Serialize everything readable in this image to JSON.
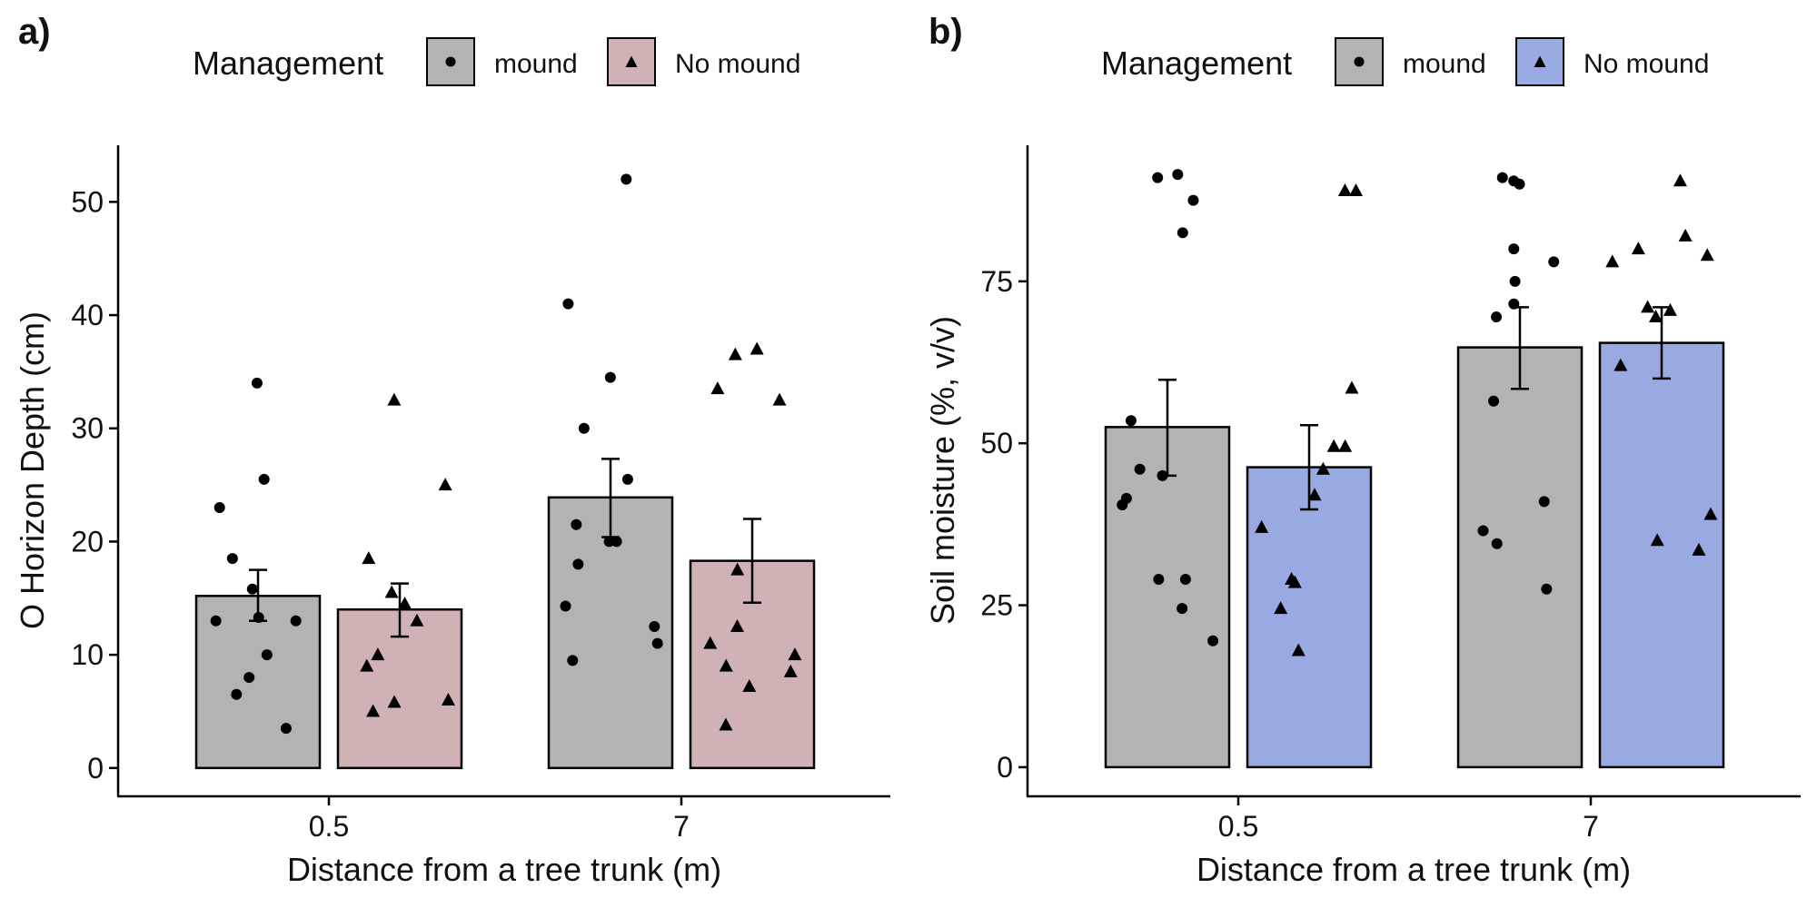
{
  "chart_data": [
    {
      "panel_label": "a)",
      "type": "bar",
      "xlabel": "Distance from a tree trunk (m)",
      "ylabel": "O Horizon Depth (cm)",
      "categories": [
        "0.5",
        "7"
      ],
      "ylim": [
        -2.5,
        55
      ],
      "yticks": [
        0,
        10,
        20,
        30,
        40,
        50
      ],
      "legend": {
        "title": "Management",
        "position": "top",
        "entries": [
          {
            "label": "mound",
            "fill": "#b3b3b3",
            "shape": "circle"
          },
          {
            "label": "No mound",
            "fill": "#d1b2b4",
            "shape": "triangle"
          }
        ]
      },
      "series": [
        {
          "name": "mound",
          "fill": "#b3b3b3",
          "shape": "circle",
          "values": [
            15.2,
            23.9
          ],
          "error_low": [
            13.0,
            20.4
          ],
          "error_high": [
            17.5,
            27.3
          ],
          "points": [
            [
              34.0,
              25.5,
              23.0,
              18.5,
              15.8,
              13.3,
              13.0,
              13.0,
              10.0,
              8.0,
              6.5,
              3.5
            ],
            [
              52.0,
              41.0,
              34.5,
              30.0,
              25.5,
              21.5,
              20.0,
              20.0,
              18.0,
              14.3,
              12.5,
              11.0,
              9.5
            ]
          ]
        },
        {
          "name": "No mound",
          "fill": "#d1b2b4",
          "shape": "triangle",
          "values": [
            14.0,
            18.3
          ],
          "error_low": [
            11.6,
            14.6
          ],
          "error_high": [
            16.3,
            22.0
          ],
          "points": [
            [
              32.5,
              25.0,
              18.5,
              15.5,
              14.5,
              13.0,
              10.0,
              9.0,
              6.0,
              5.8,
              5.0
            ],
            [
              37.0,
              36.5,
              33.5,
              32.5,
              17.5,
              12.5,
              11.0,
              10.0,
              9.0,
              8.5,
              7.2,
              3.8
            ]
          ]
        }
      ]
    },
    {
      "panel_label": "b)",
      "type": "bar",
      "xlabel": "Distance from a tree trunk (m)",
      "ylabel": "Soil moisture (%, v/v)",
      "categories": [
        "0.5",
        "7"
      ],
      "ylim": [
        -4.5,
        96
      ],
      "yticks": [
        0,
        25,
        50,
        75
      ],
      "legend": {
        "title": "Management",
        "position": "top",
        "entries": [
          {
            "label": "mound",
            "fill": "#b3b3b3",
            "shape": "circle"
          },
          {
            "label": "No mound",
            "fill": "#99a9e1",
            "shape": "triangle"
          }
        ]
      },
      "series": [
        {
          "name": "mound",
          "fill": "#b3b3b3",
          "shape": "circle",
          "values": [
            52.5,
            64.8
          ],
          "error_low": [
            45.0,
            58.4
          ],
          "error_high": [
            59.8,
            71.0
          ],
          "points": [
            [
              91.5,
              91.0,
              87.5,
              82.5,
              53.5,
              46.0,
              45.0,
              41.5,
              40.5,
              29.0,
              29.0,
              24.5,
              19.5
            ],
            [
              91.0,
              90.5,
              90.0,
              80.0,
              78.0,
              75.0,
              71.5,
              69.5,
              56.5,
              41.0,
              36.5,
              34.5,
              27.5
            ]
          ]
        },
        {
          "name": "No mound",
          "fill": "#99a9e1",
          "shape": "triangle",
          "values": [
            46.3,
            65.5
          ],
          "error_low": [
            39.8,
            60.0
          ],
          "error_high": [
            52.8,
            71.0
          ],
          "points": [
            [
              89.0,
              89.0,
              58.5,
              49.5,
              49.5,
              46.0,
              42.0,
              37.0,
              29.0,
              28.5,
              24.5,
              18.0
            ],
            [
              90.5,
              82.0,
              80.0,
              79.0,
              78.0,
              71.0,
              70.5,
              69.5,
              62.0,
              39.0,
              35.0,
              33.5
            ]
          ]
        }
      ]
    }
  ]
}
